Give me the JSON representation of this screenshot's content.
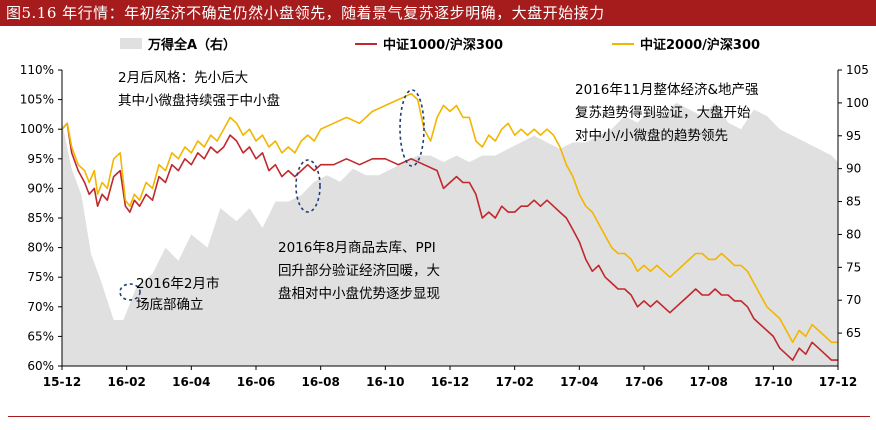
{
  "figure_title": "图5.16 年行情：年初经济不确定仍然小盘领先，随着景气复苏逐步明确，大盘开始接力",
  "chart_data": {
    "type": "line",
    "x_ticks": [
      "15-12",
      "16-02",
      "16-04",
      "16-06",
      "16-08",
      "16-10",
      "16-12",
      "17-02",
      "17-04",
      "17-06",
      "17-08",
      "17-10",
      "17-12"
    ],
    "left_axis": {
      "ticks": [
        "110%",
        "105%",
        "100%",
        "95%",
        "90%",
        "85%",
        "80%",
        "75%",
        "70%",
        "65%",
        "60%"
      ],
      "range": [
        60,
        110
      ],
      "unit": "%"
    },
    "right_axis": {
      "ticks": [
        "105",
        "100",
        "95",
        "90",
        "85",
        "80",
        "75",
        "70",
        "65"
      ],
      "range": [
        60,
        105
      ]
    },
    "grid": false,
    "legend_position": "top",
    "series": [
      {
        "name": "万得全A（右）",
        "type": "area",
        "axis": "right",
        "color": "#e0e0e0",
        "points": [
          [
            0,
            97
          ],
          [
            0.15,
            90
          ],
          [
            0.3,
            86
          ],
          [
            0.45,
            77
          ],
          [
            0.6,
            73
          ],
          [
            0.8,
            67
          ],
          [
            0.95,
            67
          ],
          [
            1.15,
            72
          ],
          [
            1.4,
            74
          ],
          [
            1.6,
            78
          ],
          [
            1.8,
            76
          ],
          [
            2.0,
            80
          ],
          [
            2.25,
            78
          ],
          [
            2.45,
            84
          ],
          [
            2.7,
            82
          ],
          [
            2.9,
            84
          ],
          [
            3.1,
            81
          ],
          [
            3.3,
            85
          ],
          [
            3.5,
            85
          ],
          [
            3.7,
            86
          ],
          [
            3.9,
            88
          ],
          [
            4.1,
            89
          ],
          [
            4.3,
            88
          ],
          [
            4.5,
            90
          ],
          [
            4.7,
            89
          ],
          [
            4.9,
            89
          ],
          [
            5.1,
            90
          ],
          [
            5.3,
            91
          ],
          [
            5.5,
            92
          ],
          [
            5.7,
            92
          ],
          [
            5.9,
            91
          ],
          [
            6.1,
            92
          ],
          [
            6.3,
            91
          ],
          [
            6.5,
            92
          ],
          [
            6.7,
            92
          ],
          [
            6.9,
            93
          ],
          [
            7.1,
            94
          ],
          [
            7.3,
            95
          ],
          [
            7.5,
            94
          ],
          [
            7.7,
            93
          ],
          [
            7.9,
            94
          ],
          [
            8.1,
            94
          ],
          [
            8.3,
            95
          ],
          [
            8.5,
            96
          ],
          [
            8.7,
            98
          ],
          [
            8.9,
            97
          ],
          [
            9.1,
            99
          ],
          [
            9.3,
            98
          ],
          [
            9.5,
            100
          ],
          [
            9.7,
            99
          ],
          [
            9.9,
            98
          ],
          [
            10.1,
            100
          ],
          [
            10.3,
            97
          ],
          [
            10.5,
            96
          ],
          [
            10.7,
            99
          ],
          [
            10.9,
            98
          ],
          [
            11.1,
            96
          ],
          [
            11.3,
            95
          ],
          [
            11.5,
            94
          ],
          [
            11.7,
            93
          ],
          [
            11.9,
            92
          ],
          [
            12.0,
            91
          ]
        ]
      },
      {
        "name": "中证1000/沪深300",
        "type": "line",
        "axis": "left",
        "color": "#c0282d",
        "points": [
          [
            0,
            100
          ],
          [
            0.08,
            101
          ],
          [
            0.15,
            96
          ],
          [
            0.25,
            93
          ],
          [
            0.35,
            91
          ],
          [
            0.42,
            89
          ],
          [
            0.5,
            90
          ],
          [
            0.55,
            87
          ],
          [
            0.62,
            89
          ],
          [
            0.7,
            88
          ],
          [
            0.8,
            92
          ],
          [
            0.9,
            93
          ],
          [
            0.98,
            87
          ],
          [
            1.05,
            86
          ],
          [
            1.12,
            88
          ],
          [
            1.2,
            87
          ],
          [
            1.3,
            89
          ],
          [
            1.4,
            88
          ],
          [
            1.5,
            92
          ],
          [
            1.6,
            91
          ],
          [
            1.7,
            94
          ],
          [
            1.8,
            93
          ],
          [
            1.9,
            95
          ],
          [
            2.0,
            94
          ],
          [
            2.1,
            96
          ],
          [
            2.2,
            95
          ],
          [
            2.3,
            97
          ],
          [
            2.4,
            96
          ],
          [
            2.5,
            97
          ],
          [
            2.6,
            99
          ],
          [
            2.7,
            98
          ],
          [
            2.8,
            96
          ],
          [
            2.9,
            97
          ],
          [
            3.0,
            95
          ],
          [
            3.1,
            96
          ],
          [
            3.2,
            93
          ],
          [
            3.3,
            94
          ],
          [
            3.4,
            92
          ],
          [
            3.5,
            93
          ],
          [
            3.6,
            92
          ],
          [
            3.7,
            93
          ],
          [
            3.8,
            94
          ],
          [
            3.9,
            93
          ],
          [
            4.0,
            94
          ],
          [
            4.2,
            94
          ],
          [
            4.4,
            95
          ],
          [
            4.6,
            94
          ],
          [
            4.8,
            95
          ],
          [
            5.0,
            95
          ],
          [
            5.2,
            94
          ],
          [
            5.4,
            95
          ],
          [
            5.6,
            94
          ],
          [
            5.8,
            93
          ],
          [
            5.9,
            90
          ],
          [
            6.0,
            91
          ],
          [
            6.1,
            92
          ],
          [
            6.2,
            91
          ],
          [
            6.3,
            91
          ],
          [
            6.4,
            89
          ],
          [
            6.5,
            85
          ],
          [
            6.6,
            86
          ],
          [
            6.7,
            85
          ],
          [
            6.8,
            87
          ],
          [
            6.9,
            86
          ],
          [
            7.0,
            86
          ],
          [
            7.1,
            87
          ],
          [
            7.2,
            87
          ],
          [
            7.3,
            88
          ],
          [
            7.4,
            87
          ],
          [
            7.5,
            88
          ],
          [
            7.6,
            87
          ],
          [
            7.7,
            86
          ],
          [
            7.8,
            85
          ],
          [
            7.9,
            83
          ],
          [
            8.0,
            81
          ],
          [
            8.1,
            78
          ],
          [
            8.2,
            76
          ],
          [
            8.3,
            77
          ],
          [
            8.4,
            75
          ],
          [
            8.5,
            74
          ],
          [
            8.6,
            73
          ],
          [
            8.7,
            73
          ],
          [
            8.8,
            72
          ],
          [
            8.9,
            70
          ],
          [
            9.0,
            71
          ],
          [
            9.1,
            70
          ],
          [
            9.2,
            71
          ],
          [
            9.3,
            70
          ],
          [
            9.4,
            69
          ],
          [
            9.5,
            70
          ],
          [
            9.6,
            71
          ],
          [
            9.7,
            72
          ],
          [
            9.8,
            73
          ],
          [
            9.9,
            72
          ],
          [
            10.0,
            72
          ],
          [
            10.1,
            73
          ],
          [
            10.2,
            72
          ],
          [
            10.3,
            72
          ],
          [
            10.4,
            71
          ],
          [
            10.5,
            71
          ],
          [
            10.6,
            70
          ],
          [
            10.7,
            68
          ],
          [
            10.8,
            67
          ],
          [
            10.9,
            66
          ],
          [
            11.0,
            65
          ],
          [
            11.1,
            63
          ],
          [
            11.2,
            62
          ],
          [
            11.3,
            61
          ],
          [
            11.4,
            63
          ],
          [
            11.5,
            62
          ],
          [
            11.6,
            64
          ],
          [
            11.7,
            63
          ],
          [
            11.8,
            62
          ],
          [
            11.9,
            61
          ],
          [
            12.0,
            61
          ]
        ]
      },
      {
        "name": "中证2000/沪深300",
        "type": "line",
        "axis": "left",
        "color": "#f2b600",
        "points": [
          [
            0,
            100
          ],
          [
            0.08,
            101
          ],
          [
            0.15,
            97
          ],
          [
            0.25,
            94
          ],
          [
            0.35,
            93
          ],
          [
            0.42,
            91
          ],
          [
            0.5,
            93
          ],
          [
            0.55,
            89
          ],
          [
            0.62,
            91
          ],
          [
            0.7,
            90
          ],
          [
            0.8,
            95
          ],
          [
            0.9,
            96
          ],
          [
            0.98,
            88
          ],
          [
            1.05,
            87
          ],
          [
            1.12,
            89
          ],
          [
            1.2,
            88
          ],
          [
            1.3,
            91
          ],
          [
            1.4,
            90
          ],
          [
            1.5,
            94
          ],
          [
            1.6,
            93
          ],
          [
            1.7,
            96
          ],
          [
            1.8,
            95
          ],
          [
            1.9,
            97
          ],
          [
            2.0,
            96
          ],
          [
            2.1,
            98
          ],
          [
            2.2,
            97
          ],
          [
            2.3,
            99
          ],
          [
            2.4,
            98
          ],
          [
            2.5,
            100
          ],
          [
            2.6,
            102
          ],
          [
            2.7,
            101
          ],
          [
            2.8,
            99
          ],
          [
            2.9,
            100
          ],
          [
            3.0,
            98
          ],
          [
            3.1,
            99
          ],
          [
            3.2,
            97
          ],
          [
            3.3,
            98
          ],
          [
            3.4,
            96
          ],
          [
            3.5,
            97
          ],
          [
            3.6,
            96
          ],
          [
            3.7,
            98
          ],
          [
            3.8,
            99
          ],
          [
            3.9,
            98
          ],
          [
            4.0,
            100
          ],
          [
            4.2,
            101
          ],
          [
            4.4,
            102
          ],
          [
            4.6,
            101
          ],
          [
            4.8,
            103
          ],
          [
            5.0,
            104
          ],
          [
            5.2,
            105
          ],
          [
            5.4,
            106
          ],
          [
            5.5,
            105
          ],
          [
            5.6,
            100
          ],
          [
            5.7,
            98
          ],
          [
            5.8,
            102
          ],
          [
            5.9,
            104
          ],
          [
            6.0,
            103
          ],
          [
            6.1,
            104
          ],
          [
            6.2,
            102
          ],
          [
            6.3,
            102
          ],
          [
            6.4,
            98
          ],
          [
            6.5,
            97
          ],
          [
            6.6,
            99
          ],
          [
            6.7,
            98
          ],
          [
            6.8,
            100
          ],
          [
            6.9,
            101
          ],
          [
            7.0,
            99
          ],
          [
            7.1,
            100
          ],
          [
            7.2,
            99
          ],
          [
            7.3,
            100
          ],
          [
            7.4,
            99
          ],
          [
            7.5,
            100
          ],
          [
            7.6,
            99
          ],
          [
            7.7,
            97
          ],
          [
            7.8,
            94
          ],
          [
            7.9,
            92
          ],
          [
            8.0,
            89
          ],
          [
            8.1,
            87
          ],
          [
            8.2,
            86
          ],
          [
            8.3,
            84
          ],
          [
            8.4,
            82
          ],
          [
            8.5,
            80
          ],
          [
            8.6,
            79
          ],
          [
            8.7,
            79
          ],
          [
            8.8,
            78
          ],
          [
            8.9,
            76
          ],
          [
            9.0,
            77
          ],
          [
            9.1,
            76
          ],
          [
            9.2,
            77
          ],
          [
            9.3,
            76
          ],
          [
            9.4,
            75
          ],
          [
            9.5,
            76
          ],
          [
            9.6,
            77
          ],
          [
            9.7,
            78
          ],
          [
            9.8,
            79
          ],
          [
            9.9,
            79
          ],
          [
            10.0,
            78
          ],
          [
            10.1,
            78
          ],
          [
            10.2,
            79
          ],
          [
            10.3,
            78
          ],
          [
            10.4,
            77
          ],
          [
            10.5,
            77
          ],
          [
            10.6,
            76
          ],
          [
            10.7,
            74
          ],
          [
            10.8,
            72
          ],
          [
            10.9,
            70
          ],
          [
            11.0,
            69
          ],
          [
            11.1,
            68
          ],
          [
            11.2,
            66
          ],
          [
            11.3,
            64
          ],
          [
            11.4,
            66
          ],
          [
            11.5,
            65
          ],
          [
            11.6,
            67
          ],
          [
            11.7,
            66
          ],
          [
            11.8,
            65
          ],
          [
            11.9,
            64
          ],
          [
            12.0,
            64
          ]
        ]
      }
    ],
    "annotations": [
      {
        "lines": [
          "2月后风格：先小后大",
          "其中小微盘持续强于中小盘"
        ]
      },
      {
        "lines": [
          "2016年11月整体经济&地产强",
          "复苏趋势得到验证，大盘开始",
          "对中小/小微盘的趋势领先"
        ]
      },
      {
        "lines": [
          "2016年8月商品去库、PPI",
          "回升部分验证经济回暖，大",
          "盘相对中小盘优势逐步显现"
        ]
      },
      {
        "lines": [
          "2016年2月市",
          "场底部确立"
        ]
      }
    ]
  }
}
